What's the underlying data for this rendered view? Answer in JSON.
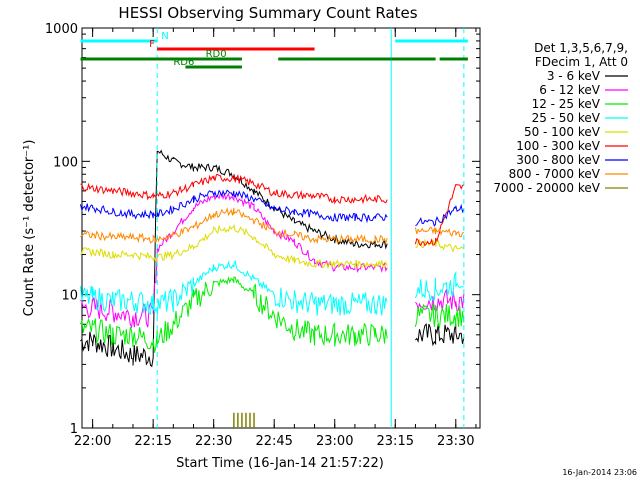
{
  "chart_data": {
    "type": "line",
    "title": "HESSI Observing Summary Count Rates",
    "xlabel": "Start Time (16-Jan-14 21:57:22)",
    "ylabel": "Count Rate (s⁻¹ detector⁻¹)",
    "yscale": "log",
    "ylim": [
      1,
      1000
    ],
    "xlim": [
      "21:57:22",
      "23:36:00"
    ],
    "x_tick_labels": [
      "22:00",
      "22:15",
      "22:30",
      "22:45",
      "23:00",
      "23:15",
      "23:30"
    ],
    "y_tick_labels": [
      "1",
      "10",
      "100",
      "1000"
    ],
    "legend_header": [
      "Det 1,3,5,6,7,9,",
      "FDecim 1, Att 0"
    ],
    "legend_position": "right",
    "x": [
      "21:57",
      "22:00",
      "22:05",
      "22:10",
      "22:15",
      "22:16",
      "22:20",
      "22:25",
      "22:30",
      "22:35",
      "22:40",
      "22:45",
      "22:50",
      "22:55",
      "23:00",
      "23:05",
      "23:10",
      "23:13",
      "23:15",
      "23:20",
      "23:25",
      "23:30",
      "23:32"
    ],
    "series": [
      {
        "name": "3 - 6 keV",
        "color": "#000000",
        "values": [
          4.5,
          4.5,
          4,
          3.5,
          3.5,
          120,
          100,
          90,
          90,
          80,
          60,
          45,
          35,
          30,
          26,
          24,
          24,
          24,
          null,
          5,
          5,
          5,
          5
        ]
      },
      {
        "name": "6 - 12 keV",
        "color": "#ff00ff",
        "values": [
          8,
          8,
          7.5,
          7,
          7,
          22,
          30,
          45,
          55,
          55,
          45,
          30,
          25,
          18,
          16,
          16,
          16,
          16,
          null,
          9,
          9,
          9,
          9
        ]
      },
      {
        "name": "12 - 25 keV",
        "color": "#00ee00",
        "values": [
          5.5,
          5.5,
          5,
          5,
          4.5,
          4.5,
          6,
          9,
          12,
          13,
          10,
          7,
          5.5,
          5,
          5,
          5,
          5,
          5,
          null,
          7,
          7,
          7,
          7
        ]
      },
      {
        "name": "25 - 50 keV",
        "color": "#00ffff",
        "values": [
          9.5,
          9.5,
          9,
          9,
          8.5,
          8.5,
          9,
          12,
          16,
          17,
          13,
          10,
          9,
          8.5,
          8.5,
          8.5,
          8.5,
          8.5,
          null,
          11,
          11,
          12,
          12
        ]
      },
      {
        "name": "50 - 100 keV",
        "color": "#dddd00",
        "values": [
          21,
          21,
          20,
          20,
          19,
          19,
          20,
          23,
          30,
          32,
          27,
          20,
          18,
          17,
          17,
          17,
          17,
          17,
          null,
          24,
          24,
          22,
          22
        ]
      },
      {
        "name": "100 - 300 keV",
        "color": "#ff0000",
        "values": [
          65,
          63,
          60,
          58,
          55,
          55,
          58,
          66,
          75,
          75,
          68,
          58,
          56,
          55,
          52,
          52,
          52,
          52,
          null,
          25,
          25,
          64,
          64
        ]
      },
      {
        "name": "300 - 800 keV",
        "color": "#0000ff",
        "values": [
          46,
          45,
          42,
          40,
          40,
          40,
          44,
          52,
          58,
          58,
          52,
          44,
          42,
          40,
          38,
          38,
          38,
          38,
          null,
          35,
          35,
          44,
          44
        ]
      },
      {
        "name": "800 - 7000 keV",
        "color": "#ff8800",
        "values": [
          28,
          28,
          27,
          27,
          26,
          26,
          28,
          32,
          40,
          42,
          36,
          30,
          28,
          26,
          26,
          26,
          26,
          26,
          null,
          30,
          30,
          29,
          29
        ]
      },
      {
        "name": "7000 - 20000 keV",
        "color": "#808000",
        "values": [
          null,
          null,
          null,
          null,
          null,
          null,
          null,
          null,
          null,
          null,
          null,
          null,
          null,
          null,
          null,
          null,
          null,
          null,
          null,
          null,
          null,
          null,
          null
        ]
      }
    ],
    "flags": [
      {
        "label": "N",
        "color": "#00ffff",
        "segments": [
          [
            "21:57",
            "22:16"
          ],
          [
            "23:15",
            "23:33"
          ]
        ]
      },
      {
        "label": "F",
        "color": "#ff0000",
        "segments": [
          [
            "22:16",
            "22:55"
          ]
        ]
      },
      {
        "label": "RD0",
        "color": "#008000",
        "segments": [
          [
            "21:57",
            "22:23"
          ],
          [
            "22:23",
            "22:37"
          ],
          [
            "22:46",
            "23:14"
          ],
          [
            "23:14",
            "23:25"
          ],
          [
            "23:26",
            "23:33"
          ]
        ]
      },
      {
        "label": "RD6",
        "color": "#008000",
        "segments": [
          [
            "22:23",
            "22:37"
          ]
        ]
      }
    ],
    "vertical_lines": [
      {
        "x": "22:16",
        "color": "#00ffff",
        "style": "dashed"
      },
      {
        "x": "23:14",
        "color": "#00ffff",
        "style": "solid"
      },
      {
        "x": "23:32",
        "color": "#00ffff",
        "style": "dashed"
      }
    ],
    "footer": "16-Jan-2014 23:06"
  }
}
